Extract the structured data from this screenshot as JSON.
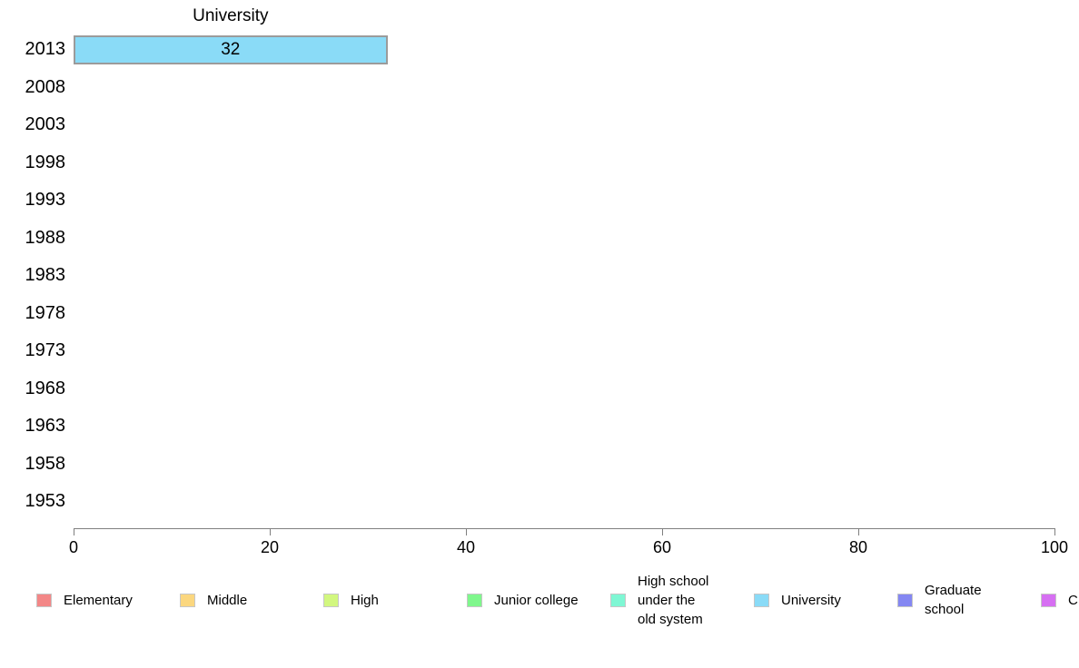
{
  "chart_data": {
    "type": "bar",
    "orientation": "horizontal",
    "title": "University",
    "categories": [
      "2013",
      "2008",
      "2003",
      "1998",
      "1993",
      "1988",
      "1983",
      "1978",
      "1973",
      "1968",
      "1963",
      "1958",
      "1953"
    ],
    "series": [
      {
        "name": "University",
        "color": "#8ADBF7",
        "border_color": "#9b9b9b",
        "values": [
          32,
          null,
          null,
          null,
          null,
          null,
          null,
          null,
          null,
          null,
          null,
          null,
          null
        ]
      }
    ],
    "xlabel": "",
    "ylabel": "",
    "xlim": [
      0,
      100
    ],
    "x_ticks": [
      0,
      20,
      40,
      60,
      80,
      100
    ],
    "grid": false,
    "axis_color": "#7f7f7f",
    "legend_position": "bottom",
    "legend": [
      {
        "label": "Elementary",
        "color": "#F38787"
      },
      {
        "label": "Middle",
        "color": "#FBD77F"
      },
      {
        "label": "High",
        "color": "#D2F77F"
      },
      {
        "label": "Junior college",
        "color": "#7FF78C"
      },
      {
        "label": "High school\nunder the\nold system",
        "color": "#7FF7D4"
      },
      {
        "label": "University",
        "color": "#8ADBF7"
      },
      {
        "label": "Graduate\nschool",
        "color": "#8487F2"
      },
      {
        "label": "C",
        "color": "#D66FF2"
      }
    ]
  }
}
